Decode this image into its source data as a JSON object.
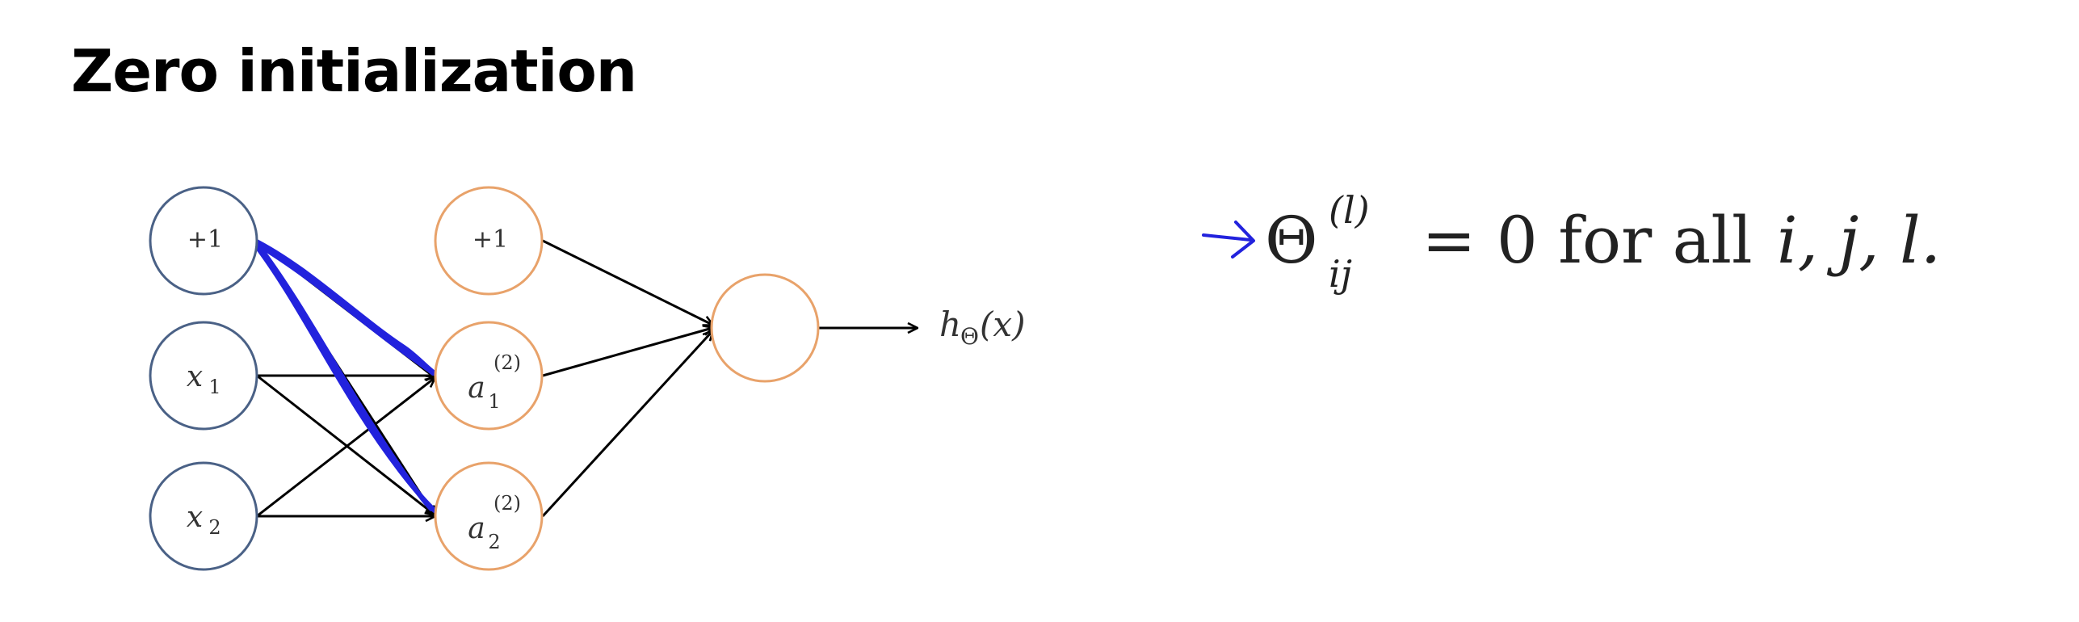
{
  "slide": {
    "title": "Zero initialization"
  },
  "colors": {
    "input_node_stroke": "#4a6186",
    "hidden_node_stroke": "#e8a26a",
    "edge": "#000000",
    "highlight": "#2222dd",
    "text": "#333333"
  },
  "network": {
    "input_nodes": [
      {
        "id": "bias1",
        "label": "+1"
      },
      {
        "id": "x1",
        "var": "x",
        "sub": "1"
      },
      {
        "id": "x2",
        "var": "x",
        "sub": "2"
      }
    ],
    "hidden_nodes": [
      {
        "id": "bias2",
        "label": "+1"
      },
      {
        "id": "a1",
        "var": "a",
        "sup": "(2)",
        "sub": "1"
      },
      {
        "id": "a2",
        "var": "a",
        "sup": "(2)",
        "sub": "2"
      }
    ],
    "output_node": {
      "id": "out"
    },
    "output_label": {
      "h": "h",
      "h_sub": "Θ",
      "arg": "(x)"
    },
    "highlighted_edges_from": "bias1"
  },
  "equation": {
    "symbol": "Θ",
    "sup": "(l)",
    "sub": "ij",
    "rest_rm": " = 0 for all ",
    "vars": "i, j, l.",
    "marker_icon": "hand-drawn-arrow-icon"
  }
}
